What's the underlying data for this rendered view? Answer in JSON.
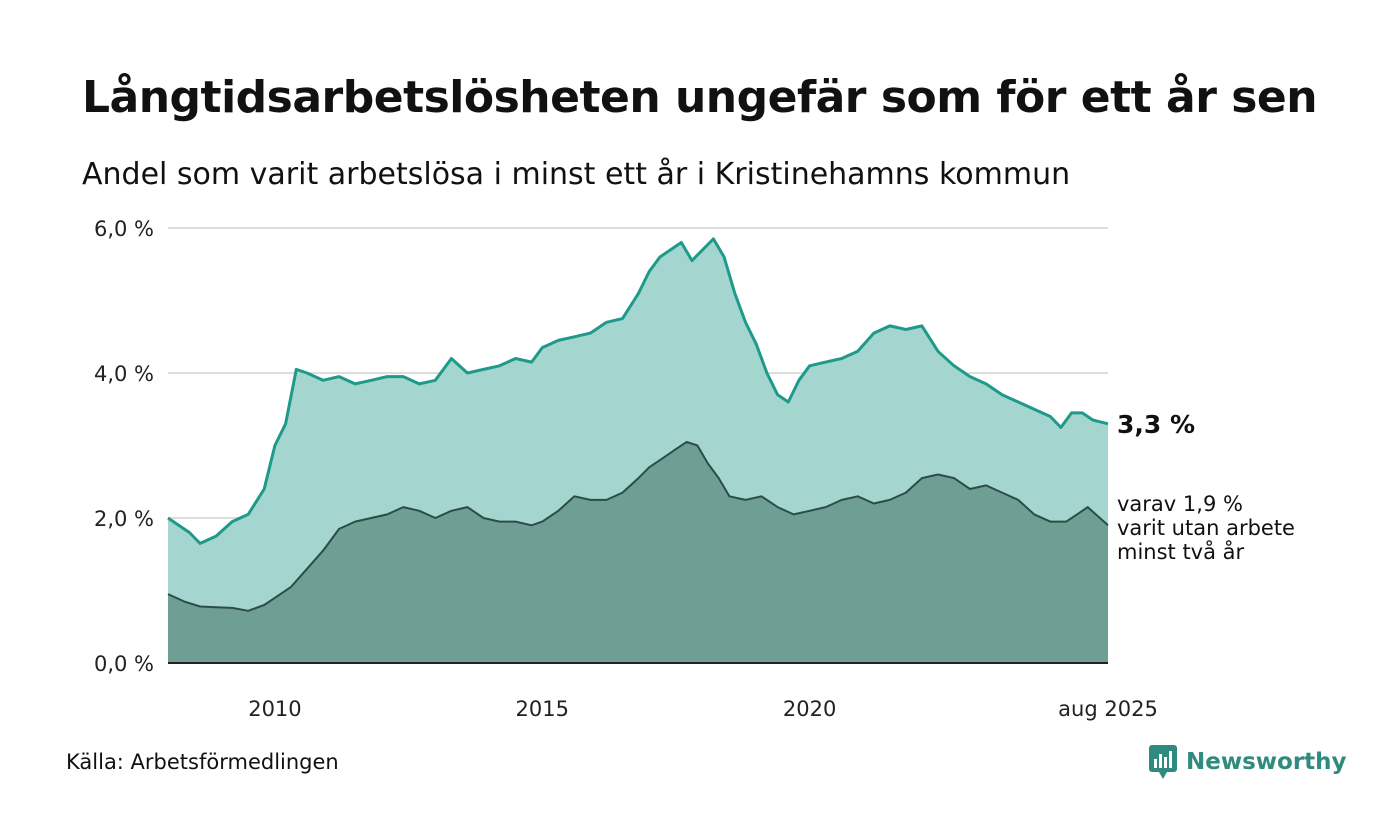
{
  "title": "Långtidsarbetslösheten ungefär som för ett år sen",
  "subtitle": "Andel som varit arbetslösa i minst ett år i Kristinehamns kommun",
  "source": "Källa: Arbetsförmedlingen",
  "brand": "Newsworthy",
  "annotations": {
    "last_value": "3,3 %",
    "sub_note": [
      "varav 1,9 %",
      "varit utan arbete",
      "minst två år"
    ]
  },
  "colors": {
    "upper_fill": "#a4d6cf",
    "upper_line": "#1f9a8a",
    "lower_fill": "#6f9e95",
    "lower_line": "#2b4d48",
    "grid": "#dddddd",
    "brand": "#2f8a80"
  },
  "chart_data": {
    "type": "area",
    "title": "Långtidsarbetslösheten ungefär som för ett år sen",
    "subtitle": "Andel som varit arbetslösa i minst ett år i Kristinehamns kommun",
    "xlabel": "",
    "ylabel": "",
    "xlim": [
      2008.0,
      2025.58
    ],
    "ylim": [
      0,
      6
    ],
    "y_ticks": [
      0,
      2,
      4,
      6
    ],
    "y_tick_labels": [
      "0,0 %",
      "2,0 %",
      "4,0 %",
      "6,0 %"
    ],
    "x_ticks": [
      2010,
      2015,
      2020,
      2025.58
    ],
    "x_tick_labels": [
      "2010",
      "2015",
      "2020",
      "aug 2025"
    ],
    "grid": true,
    "series": [
      {
        "name": "",
        "x": [
          2008.0,
          2008.2,
          2008.4,
          2008.6,
          2008.9,
          2009.2,
          2009.5,
          2009.8,
          2010.0,
          2010.2,
          2010.4,
          2010.6,
          2010.9,
          2011.2,
          2011.5,
          2011.8,
          2012.1,
          2012.4,
          2012.7,
          2013.0,
          2013.3,
          2013.6,
          2013.9,
          2014.2,
          2014.5,
          2014.8,
          2015.0,
          2015.3,
          2015.6,
          2015.9,
          2016.2,
          2016.5,
          2016.8,
          2017.0,
          2017.2,
          2017.4,
          2017.6,
          2017.8,
          2018.0,
          2018.2,
          2018.4,
          2018.6,
          2018.8,
          2019.0,
          2019.2,
          2019.4,
          2019.6,
          2019.8,
          2020.0,
          2020.3,
          2020.6,
          2020.9,
          2021.2,
          2021.5,
          2021.8,
          2022.1,
          2022.4,
          2022.7,
          2023.0,
          2023.3,
          2023.6,
          2023.9,
          2024.2,
          2024.5,
          2024.7,
          2024.9,
          2025.1,
          2025.3,
          2025.58
        ],
        "values": [
          2.0,
          1.9,
          1.8,
          1.65,
          1.75,
          1.95,
          2.05,
          2.4,
          3.0,
          3.3,
          4.05,
          4.0,
          3.9,
          3.95,
          3.85,
          3.9,
          3.95,
          3.95,
          3.85,
          3.9,
          4.2,
          4.0,
          4.05,
          4.1,
          4.2,
          4.15,
          4.35,
          4.45,
          4.5,
          4.55,
          4.7,
          4.75,
          5.1,
          5.4,
          5.6,
          5.7,
          5.8,
          5.55,
          5.7,
          5.85,
          5.6,
          5.1,
          4.7,
          4.4,
          4.0,
          3.7,
          3.6,
          3.9,
          4.1,
          4.15,
          4.2,
          4.3,
          4.55,
          4.65,
          4.6,
          4.65,
          4.3,
          4.1,
          3.95,
          3.85,
          3.7,
          3.6,
          3.5,
          3.4,
          3.25,
          3.45,
          3.45,
          3.35,
          3.3
        ]
      },
      {
        "name": "",
        "x": [
          2008.0,
          2008.3,
          2008.6,
          2008.9,
          2009.2,
          2009.5,
          2009.8,
          2010.0,
          2010.3,
          2010.6,
          2010.9,
          2011.2,
          2011.5,
          2011.8,
          2012.1,
          2012.4,
          2012.7,
          2013.0,
          2013.3,
          2013.6,
          2013.9,
          2014.2,
          2014.5,
          2014.8,
          2015.0,
          2015.3,
          2015.6,
          2015.9,
          2016.2,
          2016.5,
          2016.8,
          2017.0,
          2017.3,
          2017.5,
          2017.7,
          2017.9,
          2018.1,
          2018.3,
          2018.5,
          2018.8,
          2019.1,
          2019.4,
          2019.7,
          2020.0,
          2020.3,
          2020.6,
          2020.9,
          2021.2,
          2021.5,
          2021.8,
          2022.1,
          2022.4,
          2022.7,
          2023.0,
          2023.3,
          2023.6,
          2023.9,
          2024.2,
          2024.5,
          2024.8,
          2025.0,
          2025.2,
          2025.58
        ],
        "values": [
          0.95,
          0.85,
          0.78,
          0.77,
          0.76,
          0.72,
          0.8,
          0.9,
          1.05,
          1.3,
          1.55,
          1.85,
          1.95,
          2.0,
          2.05,
          2.15,
          2.1,
          2.0,
          2.1,
          2.15,
          2.0,
          1.95,
          1.95,
          1.9,
          1.95,
          2.1,
          2.3,
          2.25,
          2.25,
          2.35,
          2.55,
          2.7,
          2.85,
          2.95,
          3.05,
          3.0,
          2.75,
          2.55,
          2.3,
          2.25,
          2.3,
          2.15,
          2.05,
          2.1,
          2.15,
          2.25,
          2.3,
          2.2,
          2.25,
          2.35,
          2.55,
          2.6,
          2.55,
          2.4,
          2.45,
          2.35,
          2.25,
          2.05,
          1.95,
          1.95,
          2.05,
          2.15,
          1.9
        ]
      }
    ]
  }
}
